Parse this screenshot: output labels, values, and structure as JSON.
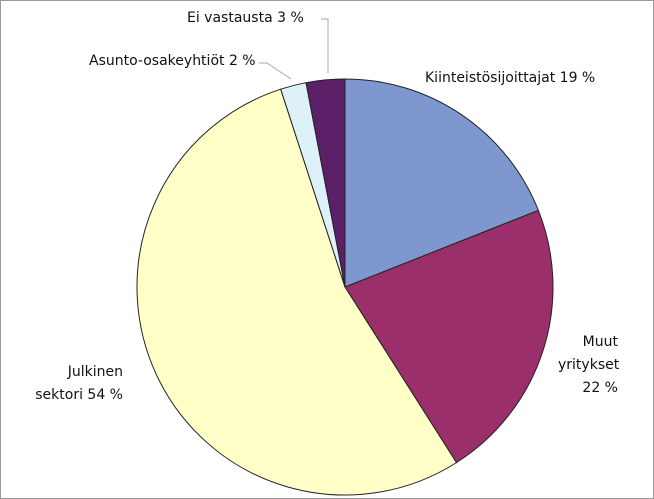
{
  "chart_data": {
    "type": "pie",
    "categories": [
      "Kiinteistösijoittajat",
      "Muut yritykset",
      "Julkinen sektori",
      "Asunto-osakeyhtiöt",
      "Ei vastausta"
    ],
    "values": [
      19,
      22,
      54,
      2,
      3
    ],
    "value_labels": [
      "19 %",
      "22 %",
      "54 %",
      "2 %",
      "3 %"
    ],
    "colors": [
      "#7f97cf",
      "#9b2f6b",
      "#ffffc8",
      "#dff1f8",
      "#5c2069"
    ]
  }
}
